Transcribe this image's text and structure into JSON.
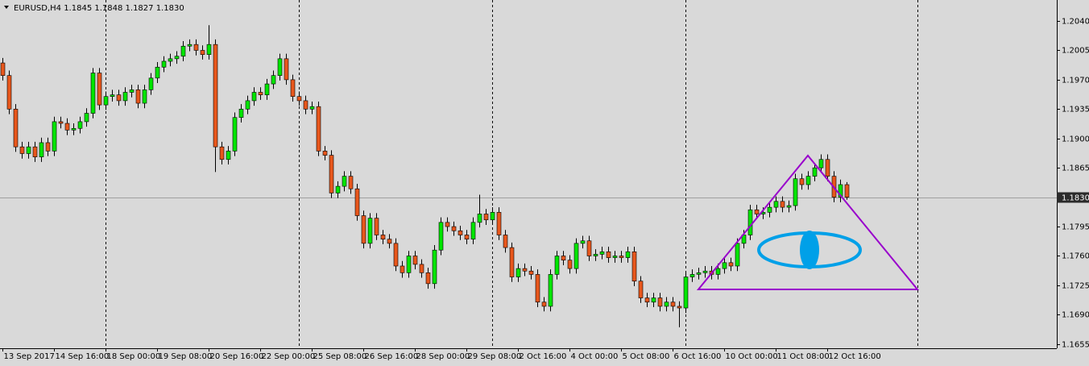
{
  "chart_data": {
    "type": "candlestick",
    "header": "EURUSD,H4  1.1845 1.1848 1.1827 1.1830",
    "open": [
      1.199,
      1.1975,
      1.1935,
      1.189,
      1.1882,
      1.189,
      1.1878,
      1.1895,
      1.1885,
      1.192,
      1.1918,
      1.191,
      1.1912,
      1.192,
      1.193,
      1.1978,
      1.194,
      1.195,
      1.1952,
      1.1945,
      1.1955,
      1.1958,
      1.1942,
      1.1958,
      1.1972,
      1.1985,
      1.1992,
      1.1995,
      1.1998,
      1.201,
      1.2012,
      1.2005,
      1.2,
      1.2012,
      1.189,
      1.1875,
      1.1885,
      1.1925,
      1.1935,
      1.1945,
      1.1955,
      1.1952,
      1.1965,
      1.1975,
      1.1995,
      1.197,
      1.195,
      1.1945,
      1.1935,
      1.1938,
      1.1885,
      1.188,
      1.1835,
      1.1843,
      1.1855,
      1.184,
      1.1808,
      1.1775,
      1.1805,
      1.1785,
      1.178,
      1.1775,
      1.1748,
      1.174,
      1.176,
      1.175,
      1.174,
      1.1727,
      1.1767,
      1.18,
      1.1795,
      1.179,
      1.1785,
      1.178,
      1.18,
      1.181,
      1.1803,
      1.1812,
      1.1785,
      1.177,
      1.1735,
      1.1745,
      1.1742,
      1.1738,
      1.1705,
      1.17,
      1.1738,
      1.176,
      1.1755,
      1.1745,
      1.1775,
      1.1778,
      1.176,
      1.1762,
      1.1765,
      1.1758,
      1.176,
      1.1758,
      1.1765,
      1.173,
      1.171,
      1.1705,
      1.171,
      1.17,
      1.1705,
      1.17,
      1.1698,
      1.1735,
      1.1738,
      1.174,
      1.1742,
      1.1738,
      1.1745,
      1.1752,
      1.1748,
      1.1775,
      1.1785,
      1.1815,
      1.181,
      1.1812,
      1.1818,
      1.1825,
      1.1818,
      1.182,
      1.1852,
      1.1845,
      1.1855,
      1.1865,
      1.1875,
      1.1855,
      1.183,
      1.1845
    ],
    "high": [
      1.1996,
      1.1981,
      1.1941,
      1.1896,
      1.1896,
      1.1896,
      1.1901,
      1.1901,
      1.1926,
      1.1926,
      1.1924,
      1.1918,
      1.1926,
      1.1936,
      1.1984,
      1.1984,
      1.1956,
      1.1958,
      1.1958,
      1.1961,
      1.1964,
      1.1964,
      1.1964,
      1.1978,
      1.1991,
      1.1998,
      1.2001,
      1.2004,
      1.2016,
      1.2018,
      1.2018,
      1.2011,
      1.2035,
      1.2018,
      1.1896,
      1.1891,
      1.1931,
      1.1941,
      1.1951,
      1.1961,
      1.1961,
      1.1971,
      1.1981,
      1.2001,
      1.2001,
      1.1976,
      1.1956,
      1.1951,
      1.1944,
      1.1944,
      1.1891,
      1.1886,
      1.1849,
      1.1861,
      1.1861,
      1.1846,
      1.1814,
      1.1811,
      1.1811,
      1.1791,
      1.1786,
      1.1781,
      1.1754,
      1.1766,
      1.1766,
      1.1756,
      1.1746,
      1.1773,
      1.1806,
      1.1806,
      1.1801,
      1.1796,
      1.1791,
      1.1806,
      1.1833,
      1.1816,
      1.1818,
      1.1818,
      1.1791,
      1.1776,
      1.1751,
      1.1751,
      1.1748,
      1.1744,
      1.1711,
      1.1744,
      1.1766,
      1.1766,
      1.1761,
      1.1781,
      1.1784,
      1.1784,
      1.1768,
      1.1771,
      1.1771,
      1.1766,
      1.1766,
      1.1771,
      1.1771,
      1.1736,
      1.1716,
      1.1716,
      1.1716,
      1.1711,
      1.1711,
      1.1706,
      1.1741,
      1.1744,
      1.1746,
      1.1748,
      1.1748,
      1.1751,
      1.1758,
      1.1758,
      1.1781,
      1.1791,
      1.1821,
      1.1821,
      1.1818,
      1.1824,
      1.1831,
      1.1831,
      1.1826,
      1.1858,
      1.1858,
      1.1861,
      1.1871,
      1.1881,
      1.1881,
      1.1861,
      1.1851,
      1.1848
    ],
    "low": [
      1.1969,
      1.1929,
      1.1884,
      1.1876,
      1.1876,
      1.1872,
      1.1872,
      1.1879,
      1.1879,
      1.1912,
      1.1904,
      1.1904,
      1.1906,
      1.1914,
      1.1924,
      1.1934,
      1.1934,
      1.1944,
      1.1939,
      1.1939,
      1.1949,
      1.1936,
      1.1936,
      1.1952,
      1.1966,
      1.1979,
      1.1986,
      1.1989,
      1.1992,
      1.2004,
      1.1999,
      1.1994,
      1.1994,
      1.186,
      1.1869,
      1.1869,
      1.1879,
      1.1919,
      1.1929,
      1.1939,
      1.1946,
      1.1946,
      1.1959,
      1.1969,
      1.1964,
      1.1944,
      1.1939,
      1.1929,
      1.1929,
      1.1879,
      1.1874,
      1.1829,
      1.1829,
      1.1837,
      1.1834,
      1.1802,
      1.1769,
      1.1769,
      1.1779,
      1.1774,
      1.1769,
      1.1742,
      1.1734,
      1.1734,
      1.1744,
      1.1734,
      1.1721,
      1.1721,
      1.1761,
      1.1789,
      1.1784,
      1.1779,
      1.1774,
      1.1774,
      1.1794,
      1.1797,
      1.1797,
      1.1779,
      1.1764,
      1.1729,
      1.1729,
      1.1736,
      1.1732,
      1.1699,
      1.1694,
      1.1694,
      1.1732,
      1.1749,
      1.1739,
      1.1739,
      1.1769,
      1.1754,
      1.1754,
      1.1756,
      1.1752,
      1.1752,
      1.1752,
      1.1752,
      1.1724,
      1.1704,
      1.1699,
      1.1699,
      1.1694,
      1.1694,
      1.1694,
      1.1675,
      1.1692,
      1.1729,
      1.1732,
      1.1734,
      1.1732,
      1.1732,
      1.1739,
      1.1742,
      1.1742,
      1.1769,
      1.1779,
      1.1804,
      1.1804,
      1.1806,
      1.1812,
      1.1812,
      1.1812,
      1.1814,
      1.1839,
      1.1839,
      1.1849,
      1.1859,
      1.1849,
      1.1824,
      1.1824,
      1.1827
    ],
    "close": [
      1.1975,
      1.1935,
      1.189,
      1.1882,
      1.189,
      1.1878,
      1.1895,
      1.1885,
      1.192,
      1.1918,
      1.191,
      1.1912,
      1.192,
      1.193,
      1.1978,
      1.194,
      1.195,
      1.1952,
      1.1945,
      1.1955,
      1.1958,
      1.1942,
      1.1958,
      1.1972,
      1.1985,
      1.1992,
      1.1995,
      1.1998,
      1.201,
      1.2012,
      1.2005,
      1.2,
      1.2012,
      1.189,
      1.1875,
      1.1885,
      1.1925,
      1.1935,
      1.1945,
      1.1955,
      1.1952,
      1.1965,
      1.1975,
      1.1995,
      1.197,
      1.195,
      1.1945,
      1.1935,
      1.1938,
      1.1885,
      1.188,
      1.1835,
      1.1843,
      1.1855,
      1.184,
      1.1808,
      1.1775,
      1.1805,
      1.1785,
      1.178,
      1.1775,
      1.1748,
      1.174,
      1.176,
      1.175,
      1.174,
      1.1727,
      1.1767,
      1.18,
      1.1795,
      1.179,
      1.1785,
      1.178,
      1.18,
      1.181,
      1.1803,
      1.1812,
      1.1785,
      1.177,
      1.1735,
      1.1745,
      1.1742,
      1.1738,
      1.1705,
      1.17,
      1.1738,
      1.176,
      1.1755,
      1.1745,
      1.1775,
      1.1778,
      1.176,
      1.1762,
      1.1765,
      1.1758,
      1.176,
      1.1758,
      1.1765,
      1.173,
      1.171,
      1.1705,
      1.171,
      1.17,
      1.1705,
      1.17,
      1.1698,
      1.1735,
      1.1738,
      1.174,
      1.1742,
      1.1738,
      1.1745,
      1.1752,
      1.1748,
      1.1775,
      1.1785,
      1.1815,
      1.181,
      1.1812,
      1.1818,
      1.1825,
      1.1818,
      1.182,
      1.1852,
      1.1845,
      1.1855,
      1.1865,
      1.1875,
      1.1855,
      1.183,
      1.1845,
      1.183
    ],
    "up_color": "#00e600",
    "down_color": "#e8571c",
    "xlim": [
      -0.4,
      163.6
    ],
    "xticks": [
      {
        "value": 0,
        "label": "13 Sep 2017"
      },
      {
        "value": 8,
        "label": "14 Sep 16:00"
      },
      {
        "value": 16,
        "label": "18 Sep 00:00"
      },
      {
        "value": 24,
        "label": "19 Sep 08:00"
      },
      {
        "value": 32,
        "label": "20 Sep 16:00"
      },
      {
        "value": 40,
        "label": "22 Sep 00:00"
      },
      {
        "value": 48,
        "label": "25 Sep 08:00"
      },
      {
        "value": 56,
        "label": "26 Sep 16:00"
      },
      {
        "value": 64,
        "label": "28 Sep 00:00"
      },
      {
        "value": 72,
        "label": "29 Sep 08:00"
      },
      {
        "value": 80,
        "label": "2 Oct 16:00"
      },
      {
        "value": 88,
        "label": "4 Oct 00:00"
      },
      {
        "value": 96,
        "label": "5 Oct 08:00"
      },
      {
        "value": 104,
        "label": "6 Oct 16:00"
      },
      {
        "value": 112,
        "label": "10 Oct 00:00"
      },
      {
        "value": 120,
        "label": "11 Oct 08:00"
      },
      {
        "value": 128,
        "label": "12 Oct 16:00"
      }
    ],
    "separators": [
      16,
      46,
      76,
      106,
      142
    ],
    "ylim": [
      1.165,
      1.2065
    ],
    "yticks": [
      {
        "value": 1.204,
        "label": "1.2040"
      },
      {
        "value": 1.2005,
        "label": "1.2005"
      },
      {
        "value": 1.197,
        "label": "1.1970"
      },
      {
        "value": 1.1935,
        "label": "1.1935"
      },
      {
        "value": 1.19,
        "label": "1.1900"
      },
      {
        "value": 1.1865,
        "label": "1.1865"
      },
      {
        "value": 1.183,
        "label": "1.1830"
      },
      {
        "value": 1.1795,
        "label": "1.1795"
      },
      {
        "value": 1.176,
        "label": "1.1760"
      },
      {
        "value": 1.1725,
        "label": "1.1725"
      },
      {
        "value": 1.169,
        "label": "1.1690"
      },
      {
        "value": 1.1655,
        "label": "1.1655"
      }
    ],
    "current_price": {
      "value": 1.183,
      "label": "1.1830"
    }
  }
}
